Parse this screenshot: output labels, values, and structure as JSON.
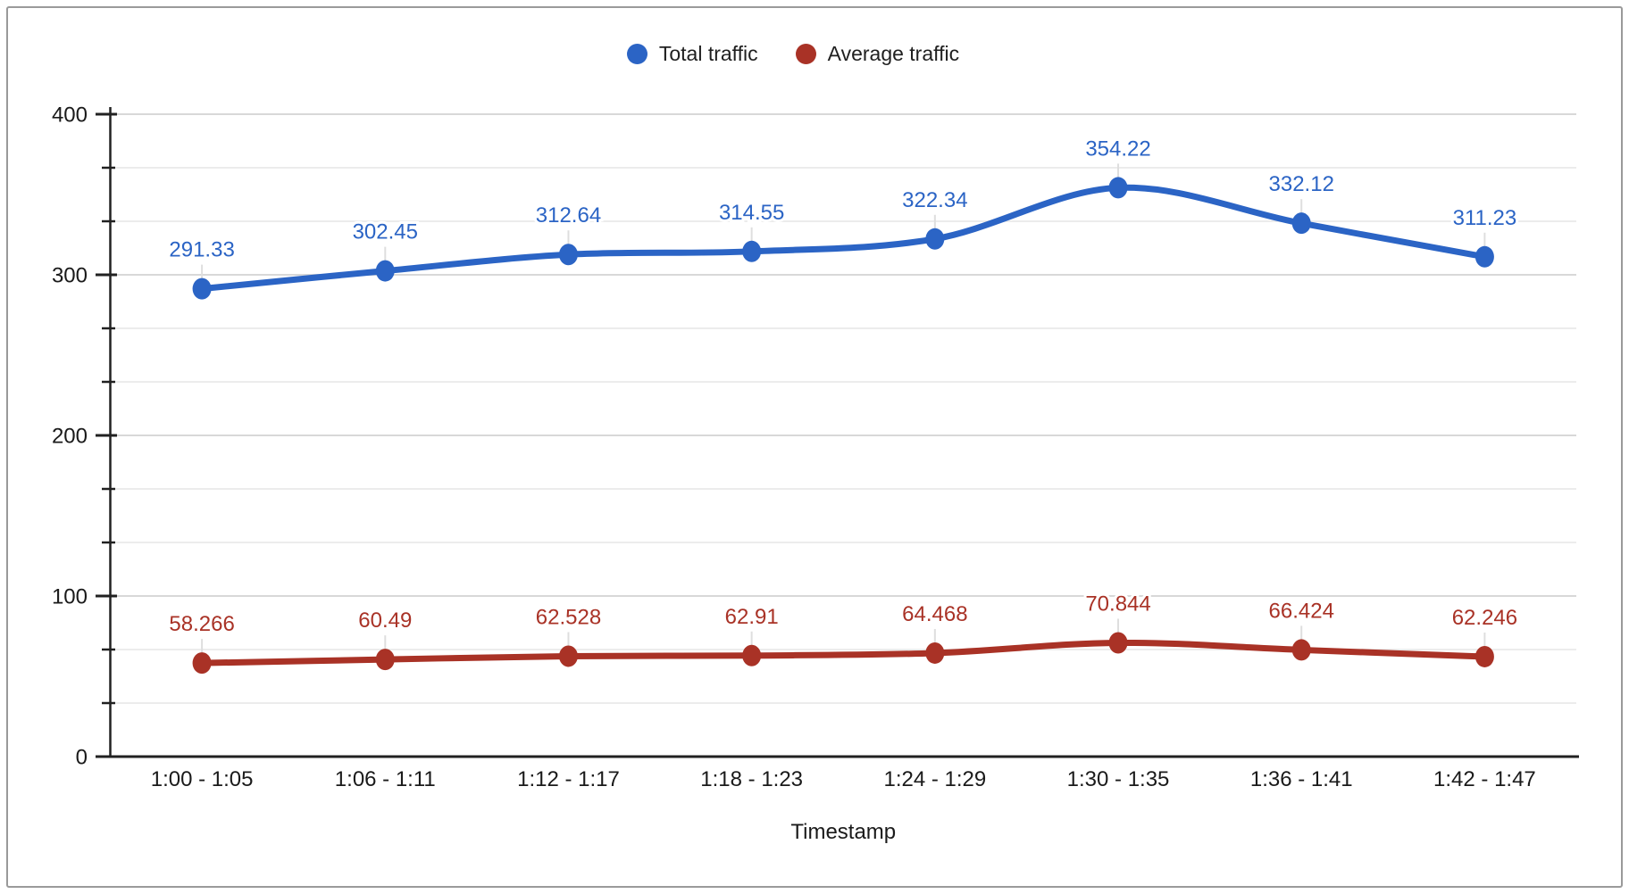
{
  "chart_data": {
    "type": "line",
    "smooth": true,
    "grid": true,
    "legend_position": "top",
    "xlabel": "Timestamp",
    "ylabel": "",
    "ylim": [
      0,
      400
    ],
    "y_major_step": 100,
    "y_minor_divisions": 3,
    "y_ticks": [
      "0",
      "100",
      "200",
      "300",
      "400"
    ],
    "categories": [
      "1:00 - 1:05",
      "1:06 - 1:11",
      "1:12 - 1:17",
      "1:18 - 1:23",
      "1:24 - 1:29",
      "1:30 - 1:35",
      "1:36 - 1:41",
      "1:42 - 1:47"
    ],
    "series": [
      {
        "name": "Total traffic",
        "color": "#2B64C5",
        "values": [
          291.33,
          302.45,
          312.64,
          314.55,
          322.34,
          354.22,
          332.12,
          311.23
        ],
        "labels": [
          "291.33",
          "302.45",
          "312.64",
          "314.55",
          "322.34",
          "354.22",
          "332.12",
          "311.23"
        ]
      },
      {
        "name": "Average traffic",
        "color": "#A93226",
        "values": [
          58.266,
          60.49,
          62.528,
          62.91,
          64.468,
          70.844,
          66.424,
          62.246
        ],
        "labels": [
          "58.266",
          "60.49",
          "62.528",
          "62.91",
          "64.468",
          "70.844",
          "66.424",
          "62.246"
        ]
      }
    ]
  },
  "style": {
    "gridline_major_color": "#d8d8d8",
    "gridline_minor_color": "#ececec",
    "axis_color": "#212121",
    "leader_line_color": "#dedede",
    "frame_border_color": "#9a9a9a"
  }
}
